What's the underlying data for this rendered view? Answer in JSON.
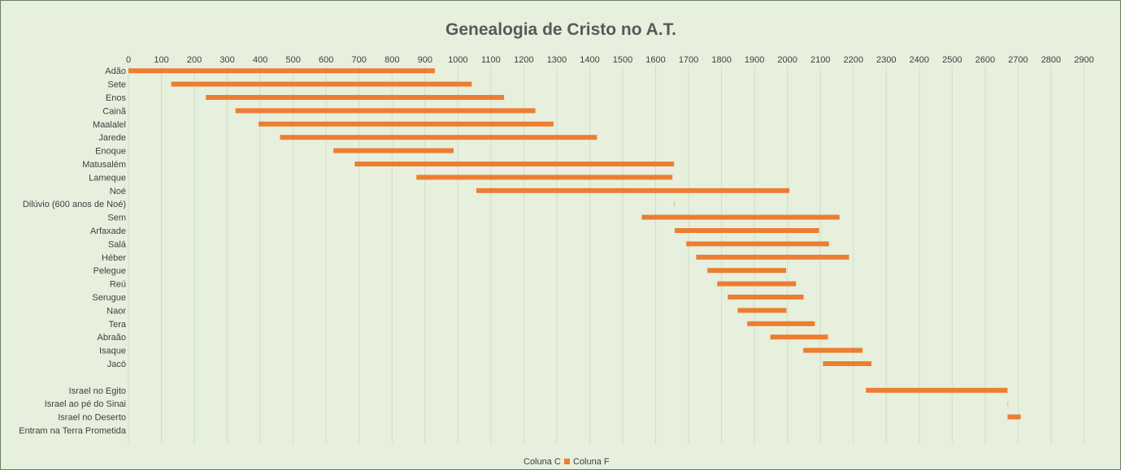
{
  "chart_data": {
    "type": "bar",
    "orientation": "horizontal",
    "stacked": true,
    "title": "Genealogia de Cristo no A.T.",
    "xlim": [
      0,
      3000
    ],
    "x_ticks": [
      0,
      100,
      200,
      300,
      400,
      500,
      600,
      700,
      800,
      900,
      1000,
      1100,
      1200,
      1300,
      1400,
      1500,
      1600,
      1700,
      1800,
      1900,
      2000,
      2100,
      2200,
      2300,
      2400,
      2500,
      2600,
      2700,
      2800,
      2900
    ],
    "x_axis_position": "top",
    "grid": true,
    "legend_position": "bottom",
    "categories": [
      "Adão",
      "Sete",
      "Enos",
      "Cainã",
      "Maalalel",
      "Jarede",
      "Enoque",
      "Matusalém",
      "Lameque",
      "Noé",
      "Dilúvio (600 anos de Noé)",
      "Sem",
      "Arfaxade",
      "Salá",
      "Héber",
      "Pelegue",
      "Reú",
      "Serugue",
      "Naor",
      "Tera",
      "Abraão",
      "Isaque",
      "Jacó",
      "",
      "Israel no Egito",
      "Israel ao pé do Sinai",
      "Israel no Deserto",
      "Entram na Terra Prometida"
    ],
    "series": [
      {
        "name": "Coluna C",
        "color": "transparent",
        "values": [
          0,
          130,
          235,
          325,
          395,
          460,
          622,
          687,
          874,
          1056,
          1656,
          1558,
          1658,
          1693,
          1723,
          1757,
          1787,
          1819,
          1849,
          1878,
          1948,
          2048,
          2108,
          null,
          2238,
          2668,
          2668,
          2708
        ]
      },
      {
        "name": "Coluna F",
        "color": "#ed7d31",
        "values": [
          930,
          912,
          905,
          910,
          895,
          962,
          365,
          969,
          777,
          950,
          1,
          600,
          438,
          433,
          464,
          239,
          239,
          230,
          148,
          205,
          175,
          180,
          147,
          null,
          430,
          1,
          40,
          0
        ]
      }
    ]
  }
}
